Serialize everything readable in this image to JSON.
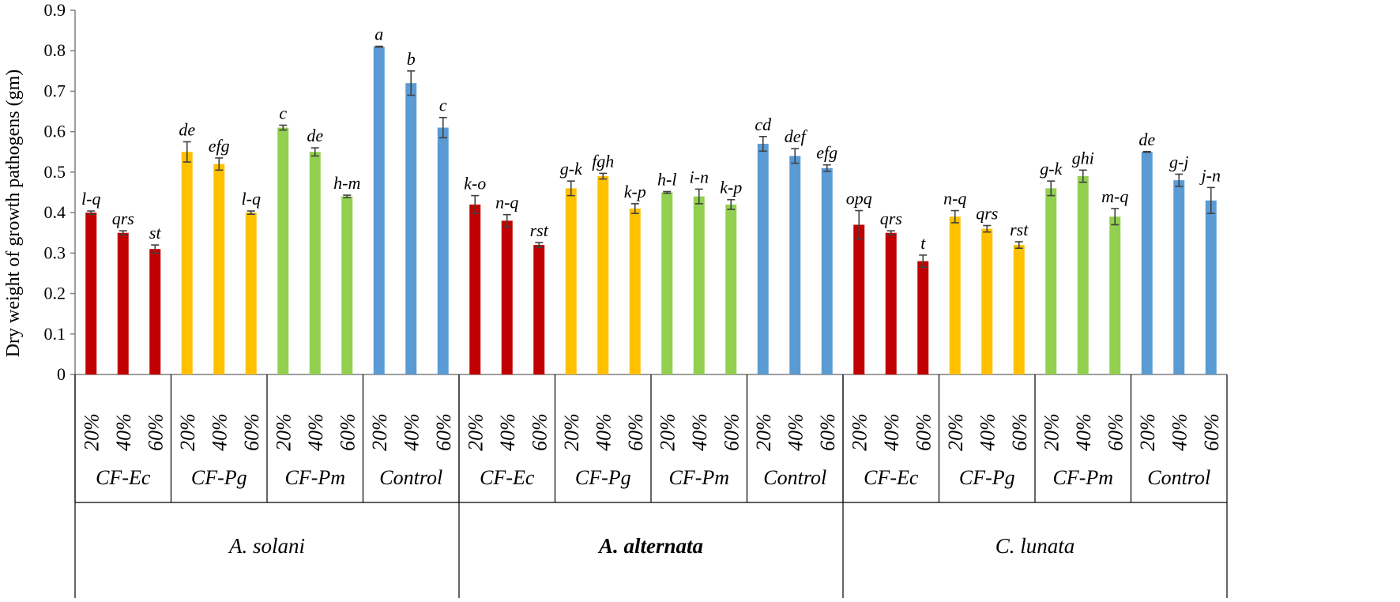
{
  "chart_data": {
    "type": "bar",
    "title": "",
    "xlabel": "",
    "ylabel": "Dry weight of growth pathogens (gm)",
    "ylim": [
      0,
      0.9
    ],
    "yticks": [
      "0",
      "0.1",
      "0.2",
      "0.3",
      "0.4",
      "0.5",
      "0.6",
      "0.7",
      "0.8",
      "0.9"
    ],
    "grid": false,
    "legend": "none",
    "colors": {
      "CF-Ec": "#c00000",
      "CF-Pg": "#ffc000",
      "CF-Pm": "#92d050",
      "Control": "#5b9bd5",
      "error": "#404040"
    },
    "concentrations": [
      "20%",
      "40%",
      "60%"
    ],
    "treatments": [
      "CF-Ec",
      "CF-Pg",
      "CF-Pm",
      "Control"
    ],
    "pathogens": [
      {
        "name": "A. solani",
        "bold": false,
        "groups": [
          {
            "treatment": "CF-Ec",
            "values": [
              0.4,
              0.35,
              0.31
            ],
            "errors": [
              0.004,
              0.005,
              0.01
            ],
            "letters": [
              "l-q",
              "qrs",
              "st"
            ]
          },
          {
            "treatment": "CF-Pg",
            "values": [
              0.55,
              0.52,
              0.4
            ],
            "errors": [
              0.025,
              0.015,
              0.004
            ],
            "letters": [
              "de",
              "efg",
              "l-q"
            ]
          },
          {
            "treatment": "CF-Pm",
            "values": [
              0.61,
              0.55,
              0.44
            ],
            "errors": [
              0.006,
              0.01,
              0.003
            ],
            "letters": [
              "c",
              "de",
              "h-m"
            ]
          },
          {
            "treatment": "Control",
            "values": [
              0.81,
              0.72,
              0.61
            ],
            "errors": [
              0.001,
              0.03,
              0.025
            ],
            "letters": [
              "a",
              "b",
              "c"
            ]
          }
        ]
      },
      {
        "name": "A. alternata",
        "bold": true,
        "groups": [
          {
            "treatment": "CF-Ec",
            "values": [
              0.42,
              0.38,
              0.32
            ],
            "errors": [
              0.022,
              0.015,
              0.006
            ],
            "letters": [
              "k-o",
              "n-q",
              "rst"
            ]
          },
          {
            "treatment": "CF-Pg",
            "values": [
              0.46,
              0.49,
              0.41
            ],
            "errors": [
              0.018,
              0.007,
              0.012
            ],
            "letters": [
              "g-k",
              "fgh",
              "k-p"
            ]
          },
          {
            "treatment": "CF-Pm",
            "values": [
              0.45,
              0.44,
              0.42
            ],
            "errors": [
              0.002,
              0.018,
              0.012
            ],
            "letters": [
              "h-l",
              "i-n",
              "k-p"
            ]
          },
          {
            "treatment": "Control",
            "values": [
              0.57,
              0.54,
              0.51
            ],
            "errors": [
              0.018,
              0.018,
              0.008
            ],
            "letters": [
              "cd",
              "def",
              "efg"
            ]
          }
        ]
      },
      {
        "name": "C. lunata",
        "bold": false,
        "groups": [
          {
            "treatment": "CF-Ec",
            "values": [
              0.37,
              0.35,
              0.28
            ],
            "errors": [
              0.035,
              0.005,
              0.015
            ],
            "letters": [
              "opq",
              "qrs",
              "t"
            ]
          },
          {
            "treatment": "CF-Pg",
            "values": [
              0.39,
              0.36,
              0.32
            ],
            "errors": [
              0.015,
              0.008,
              0.008
            ],
            "letters": [
              "n-q",
              "qrs",
              "rst"
            ]
          },
          {
            "treatment": "CF-Pm",
            "values": [
              0.46,
              0.49,
              0.39
            ],
            "errors": [
              0.018,
              0.015,
              0.02
            ],
            "letters": [
              "g-k",
              "ghi",
              "m-q"
            ]
          },
          {
            "treatment": "Control",
            "values": [
              0.55,
              0.48,
              0.43
            ],
            "errors": [
              0.001,
              0.015,
              0.032
            ],
            "letters": [
              "de",
              "g-j",
              "j-n"
            ]
          }
        ]
      }
    ]
  }
}
